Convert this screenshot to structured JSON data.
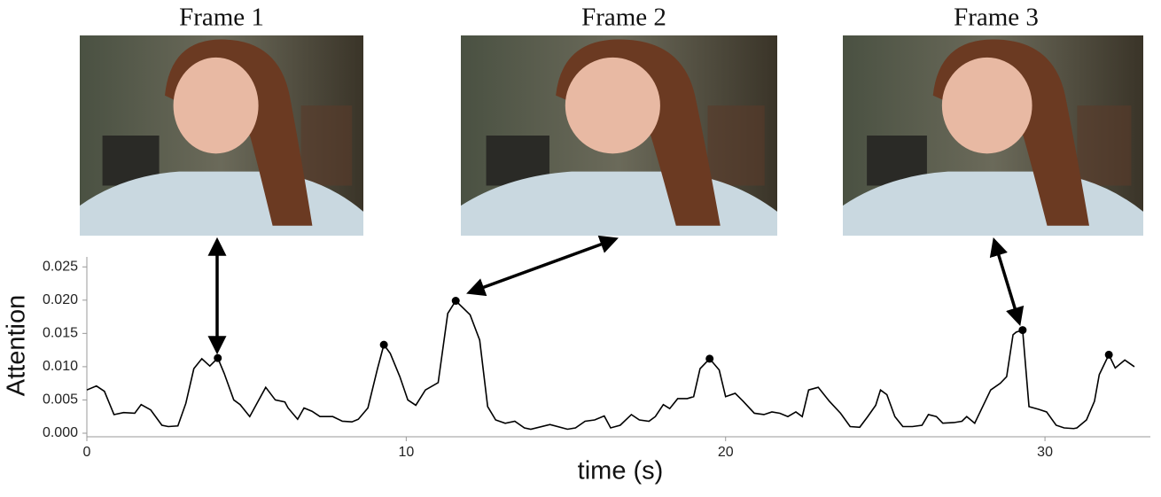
{
  "chart_data": {
    "type": "line",
    "annotations": [
      "Frame 1",
      "Frame 2",
      "Frame 3"
    ],
    "xlabel": "time (s)",
    "ylabel": "Attention",
    "x": [
      0,
      0.3,
      0.55,
      0.85,
      1.15,
      1.5,
      1.7,
      2.0,
      2.35,
      2.55,
      2.85,
      3.1,
      3.35,
      3.6,
      3.85,
      4.1,
      4.3,
      4.6,
      4.8,
      5.1,
      5.6,
      5.9,
      6.2,
      6.3,
      6.6,
      6.8,
      7.05,
      7.3,
      7.7,
      8.0,
      8.3,
      8.5,
      8.8,
      9.1,
      9.3,
      9.5,
      9.8,
      10.05,
      10.3,
      10.6,
      11.0,
      11.3,
      11.55,
      12.0,
      12.3,
      12.55,
      12.8,
      13.1,
      13.4,
      13.7,
      13.9,
      14.5,
      15.05,
      15.3,
      15.6,
      15.9,
      16.2,
      16.4,
      16.7,
      17.05,
      17.3,
      17.6,
      17.8,
      18.05,
      18.25,
      18.5,
      18.8,
      19.0,
      19.2,
      19.5,
      19.8,
      20.0,
      20.3,
      20.55,
      20.9,
      21.2,
      21.45,
      21.7,
      21.95,
      22.2,
      22.4,
      22.6,
      22.9,
      23.25,
      23.6,
      23.9,
      24.2,
      24.45,
      24.7,
      24.85,
      25.05,
      25.3,
      25.55,
      25.85,
      26.15,
      26.35,
      26.6,
      26.8,
      27.15,
      27.4,
      27.55,
      27.8,
      28.05,
      28.3,
      28.6,
      28.8,
      29.0,
      29.1,
      29.3,
      29.5,
      29.8,
      30.05,
      30.35,
      30.6,
      30.9,
      31.0,
      31.3,
      31.55,
      31.7,
      32.0,
      32.2,
      32.5,
      32.8
    ],
    "series": [
      {
        "name": "attention",
        "color": "#000000",
        "values": [
          0.0065,
          0.0071,
          0.0063,
          0.0028,
          0.0031,
          0.003,
          0.0043,
          0.0035,
          0.0012,
          0.001,
          0.0011,
          0.0045,
          0.0097,
          0.0112,
          0.0101,
          0.0113,
          0.009,
          0.005,
          0.0043,
          0.0025,
          0.0069,
          0.005,
          0.0047,
          0.0038,
          0.0021,
          0.0038,
          0.0033,
          0.0025,
          0.0025,
          0.0018,
          0.0017,
          0.0021,
          0.0038,
          0.0097,
          0.0133,
          0.012,
          0.0085,
          0.005,
          0.0042,
          0.0065,
          0.0076,
          0.018,
          0.0199,
          0.0178,
          0.014,
          0.004,
          0.002,
          0.0015,
          0.0018,
          0.0008,
          0.0006,
          0.0013,
          0.0006,
          0.0008,
          0.0018,
          0.002,
          0.0026,
          0.0008,
          0.0012,
          0.0028,
          0.002,
          0.0018,
          0.0025,
          0.0043,
          0.0037,
          0.0052,
          0.0052,
          0.0055,
          0.0097,
          0.0112,
          0.0095,
          0.0055,
          0.006,
          0.0048,
          0.003,
          0.0028,
          0.0032,
          0.003,
          0.0025,
          0.0032,
          0.0025,
          0.0065,
          0.0069,
          0.0048,
          0.003,
          0.001,
          0.0009,
          0.0025,
          0.0042,
          0.0065,
          0.0058,
          0.0025,
          0.001,
          0.001,
          0.0012,
          0.0028,
          0.0025,
          0.0015,
          0.0016,
          0.0018,
          0.0025,
          0.0015,
          0.004,
          0.0065,
          0.0075,
          0.0085,
          0.0148,
          0.0152,
          0.0155,
          0.004,
          0.0036,
          0.0032,
          0.0012,
          0.0008,
          0.0007,
          0.0008,
          0.002,
          0.0048,
          0.0088,
          0.0118,
          0.0098,
          0.011,
          0.01
        ]
      }
    ],
    "markers": {
      "x": [
        4.1,
        9.3,
        11.55,
        19.5,
        29.3,
        32.0
      ],
      "y": [
        0.0113,
        0.0133,
        0.0199,
        0.0112,
        0.0155,
        0.0118
      ]
    },
    "xlim": [
      0,
      33.3
    ],
    "ylim": [
      0,
      0.0265
    ],
    "xticks": [
      0,
      10,
      20,
      30
    ],
    "yticks": [
      {
        "value": 0,
        "label": "0.000"
      },
      {
        "value": 0.005,
        "label": "0.005"
      },
      {
        "value": 0.01,
        "label": "0.010"
      },
      {
        "value": 0.015,
        "label": "0.015"
      },
      {
        "value": 0.02,
        "label": "0.020"
      },
      {
        "value": 0.025,
        "label": "0.025"
      }
    ]
  }
}
